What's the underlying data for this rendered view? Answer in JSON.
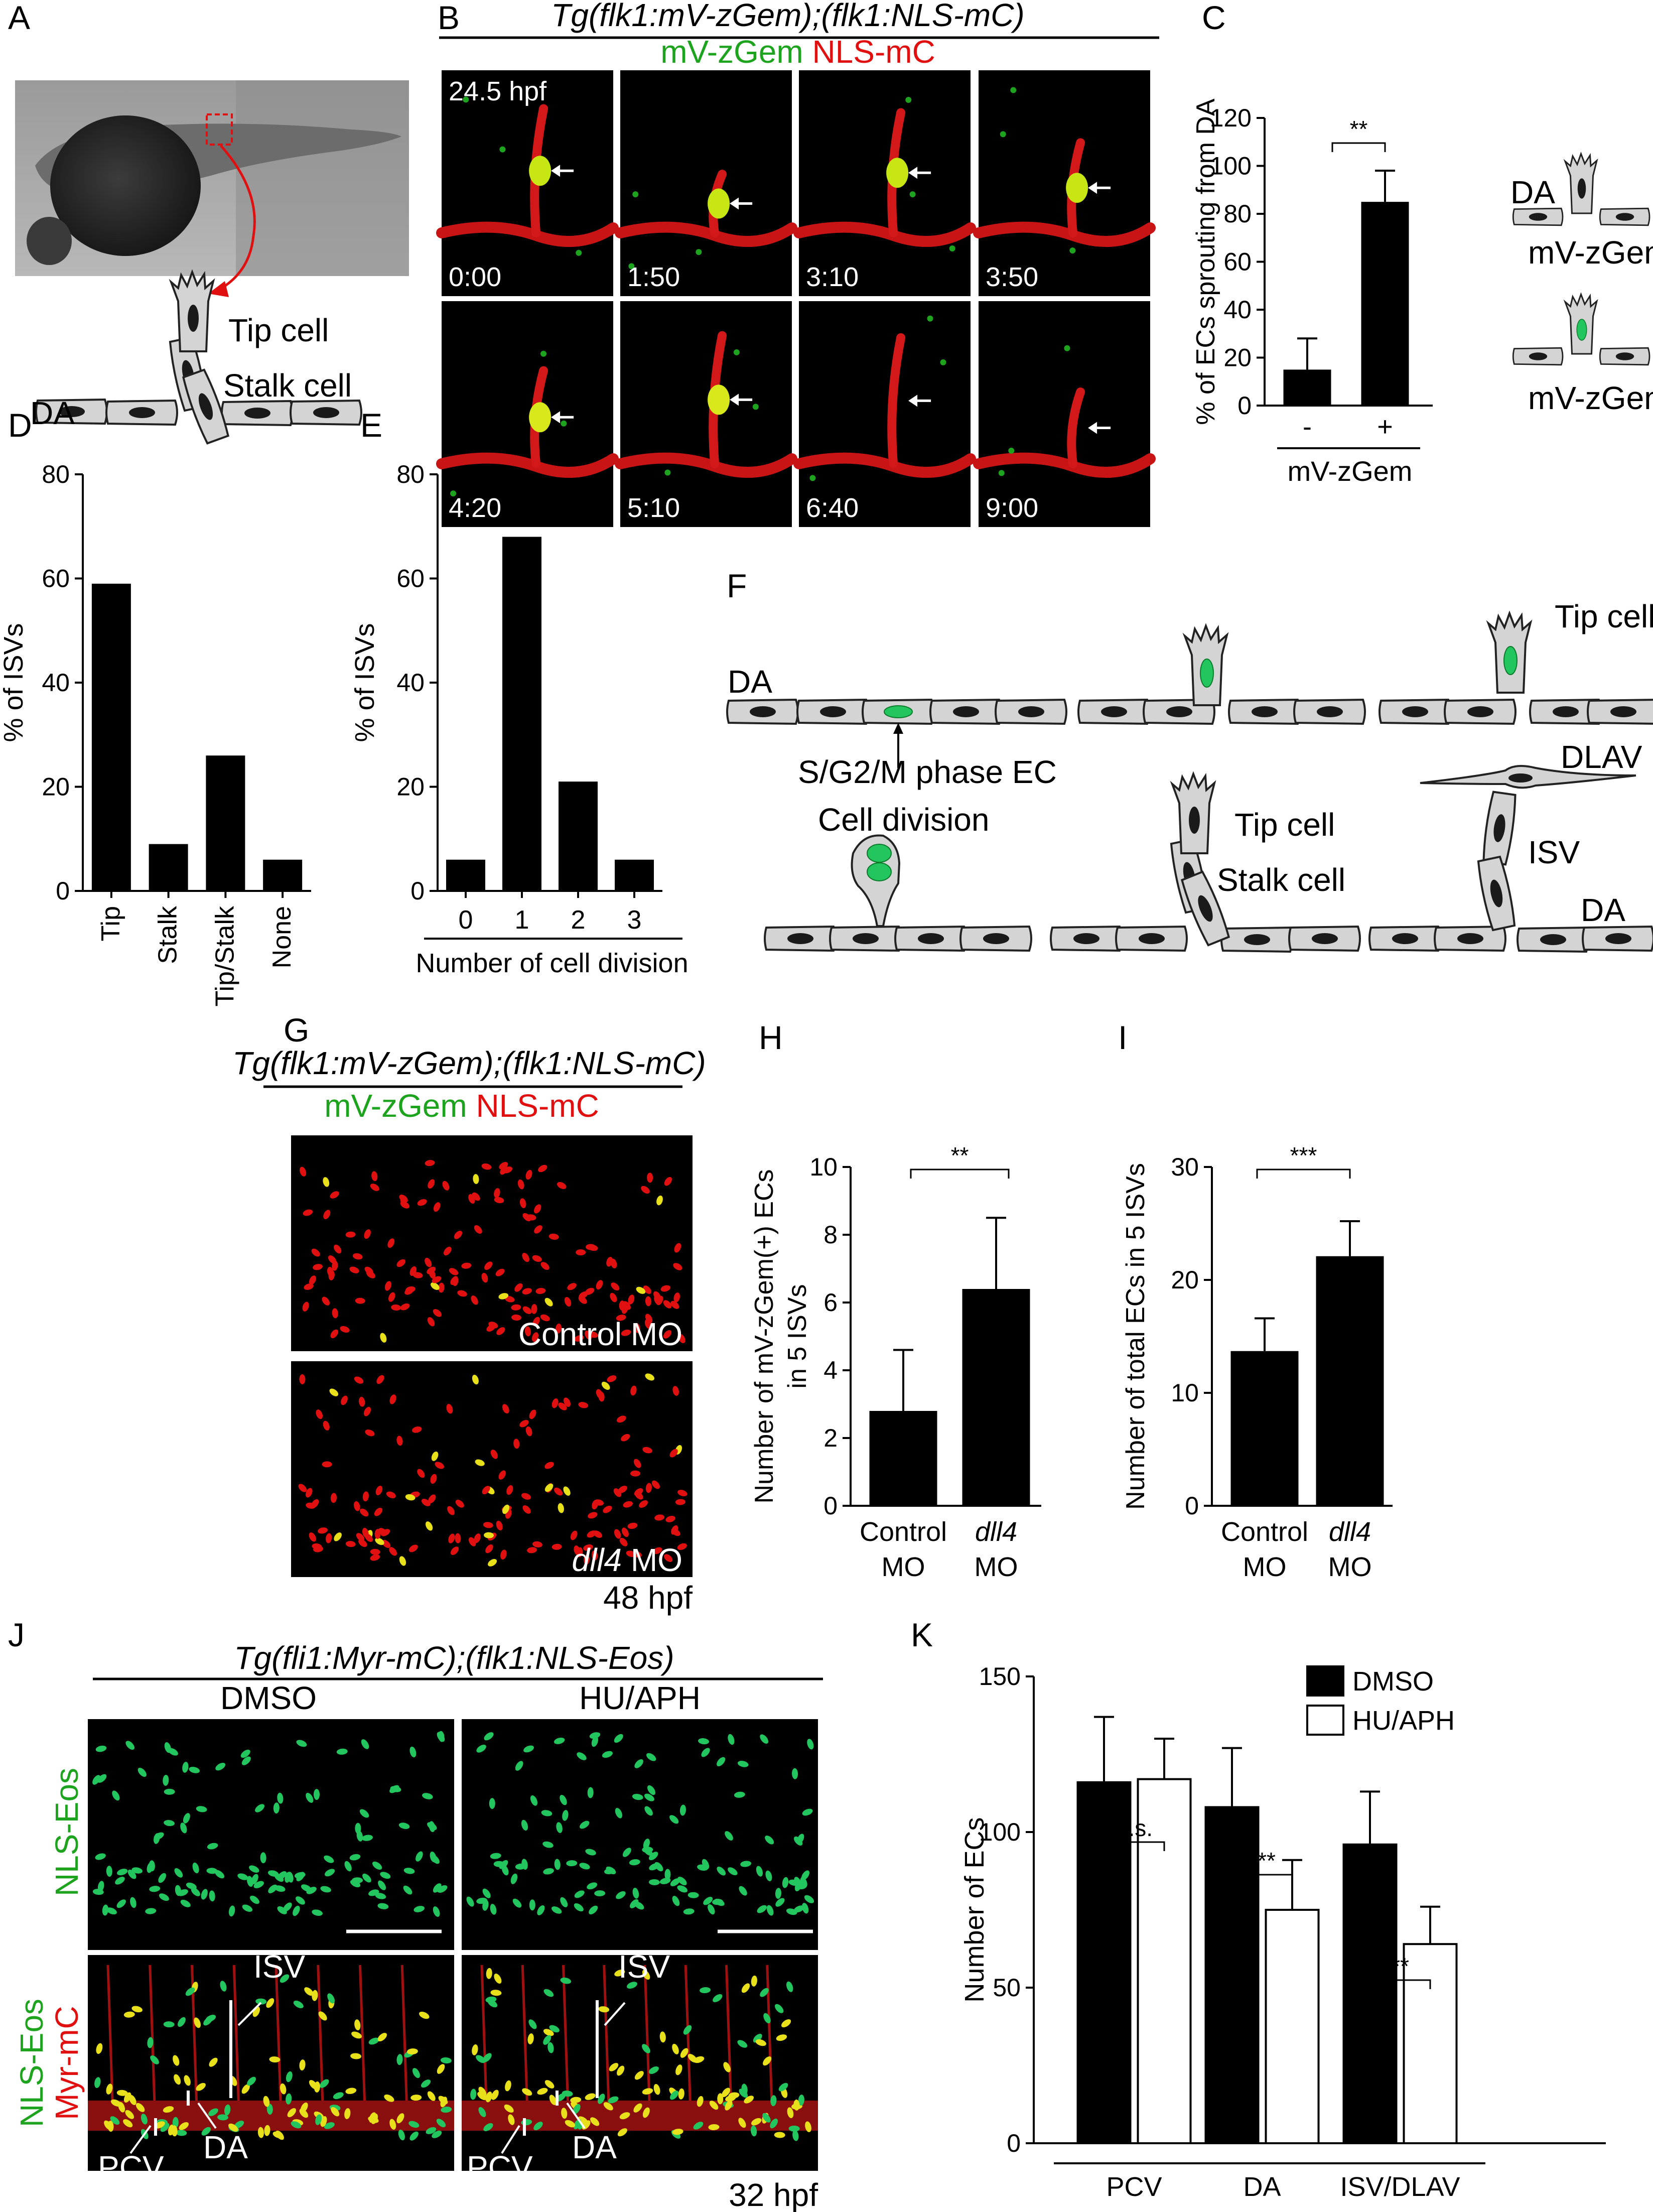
{
  "panel_letters": {
    "A": "A",
    "B": "B",
    "C": "C",
    "D": "D",
    "E": "E",
    "F": "F",
    "G": "G",
    "H": "H",
    "I": "I",
    "J": "J",
    "K": "K"
  },
  "colors": {
    "green": "#1ea31e",
    "red": "#e01010",
    "bar_black": "#000000",
    "bar_white": "#ffffff",
    "cell_gray": "#d4d4d4",
    "nucleus": "#1a1a1a",
    "green_nucleus": "#22c55e"
  },
  "panel_a": {
    "tip_cell": "Tip cell",
    "stalk_cell": "Stalk cell",
    "da": "DA"
  },
  "panel_b": {
    "title": "Tg(flk1:mV-zGem);(flk1:NLS-mC)",
    "legend_green": "mV-zGem",
    "legend_red": "NLS-mC",
    "stage": "24.5 hpf",
    "times": [
      "0:00",
      "1:50",
      "3:10",
      "3:50",
      "4:20",
      "5:10",
      "6:40",
      "9:00"
    ]
  },
  "panel_c": {
    "significance": "**",
    "group_label": "mV-zGem",
    "schematic_da": "DA",
    "schematic_neg": "mV-zGem(-)",
    "schematic_pos": "mV-zGem(+)"
  },
  "panel_d": {},
  "panel_e": {},
  "panel_f": {
    "da1": "DA",
    "phase": "S/G2/M phase EC",
    "tip1": "Tip cell",
    "cell_division": "Cell division",
    "tip2": "Tip cell",
    "stalk2": "Stalk cell",
    "dlav": "DLAV",
    "isv": "ISV",
    "da3": "DA"
  },
  "panel_g": {
    "title": "Tg(flk1:mV-zGem);(flk1:NLS-mC)",
    "legend_green": "mV-zGem",
    "legend_red": "NLS-mC",
    "control": "Control MO",
    "dll4_italic": "dll4",
    "dll4_rest": " MO",
    "stage": "48 hpf"
  },
  "panel_h": {
    "significance": "**"
  },
  "panel_i": {
    "significance": "***"
  },
  "panel_j": {
    "title": "Tg(fli1:Myr-mC);(flk1:NLS-Eos)",
    "dmso": "DMSO",
    "huaph": "HU/APH",
    "row1": "NLS-Eos",
    "row2a": "NLS-Eos",
    "row2b": "Myr-mC",
    "isv": "ISV",
    "pcv": "PCV",
    "da": "DA",
    "stage": "32 hpf"
  },
  "panel_k": {
    "sig_pcv": "n.s.",
    "sig_da": "***",
    "sig_isv": "**"
  },
  "chart_data": [
    {
      "id": "C",
      "type": "bar",
      "categories": [
        "-",
        "+"
      ],
      "values": [
        15,
        85
      ],
      "errors": [
        13,
        13
      ],
      "ylabel": "% of ECs sprouting from DA",
      "xlabel": "mV-zGem",
      "ylim": [
        0,
        120
      ],
      "yticks": [
        0,
        20,
        40,
        60,
        80,
        100,
        120
      ],
      "grid": false
    },
    {
      "id": "D",
      "type": "bar",
      "categories": [
        "Tip",
        "Stalk",
        "Tip/Stalk",
        "None"
      ],
      "values": [
        59,
        9,
        26,
        6
      ],
      "ylabel": "% of ISVs",
      "xlabel": "",
      "ylim": [
        0,
        80
      ],
      "yticks": [
        0,
        20,
        40,
        60,
        80
      ],
      "grid": false
    },
    {
      "id": "E",
      "type": "bar",
      "categories": [
        "0",
        "1",
        "2",
        "3"
      ],
      "values": [
        6,
        68,
        21,
        6
      ],
      "ylabel": "% of ISVs",
      "xlabel": "Number of cell division",
      "ylim": [
        0,
        80
      ],
      "yticks": [
        0,
        20,
        40,
        60,
        80
      ],
      "grid": false
    },
    {
      "id": "H",
      "type": "bar",
      "categories": [
        "Control MO",
        "dll4 MO"
      ],
      "values": [
        2.8,
        6.4
      ],
      "errors": [
        1.8,
        2.1
      ],
      "ylabel": "Number of mV-zGem(+) ECs in 5 ISVs",
      "xlabel": "",
      "ylim": [
        0,
        10
      ],
      "yticks": [
        0,
        2,
        4,
        6,
        8,
        10
      ],
      "grid": false
    },
    {
      "id": "I",
      "type": "bar",
      "categories": [
        "Control MO",
        "dll4 MO"
      ],
      "values": [
        13.7,
        22.1
      ],
      "errors": [
        2.9,
        3.1
      ],
      "ylabel": "Number of total ECs in 5 ISVs",
      "xlabel": "",
      "ylim": [
        0,
        30
      ],
      "yticks": [
        0,
        10,
        20,
        30
      ],
      "grid": false
    },
    {
      "id": "K",
      "type": "bar",
      "categories": [
        "PCV",
        "DA",
        "ISV/DLAV"
      ],
      "series": [
        {
          "name": "DMSO",
          "values": [
            116,
            108,
            96
          ],
          "errors": [
            21,
            19,
            17
          ]
        },
        {
          "name": "HU/APH",
          "values": [
            117,
            75,
            64
          ],
          "errors": [
            13,
            16,
            12
          ]
        }
      ],
      "ylabel": "Number of ECs",
      "xlabel": "",
      "ylim": [
        0,
        150
      ],
      "yticks": [
        0,
        50,
        100,
        150
      ],
      "legend_position": "top-right",
      "grid": false
    }
  ]
}
